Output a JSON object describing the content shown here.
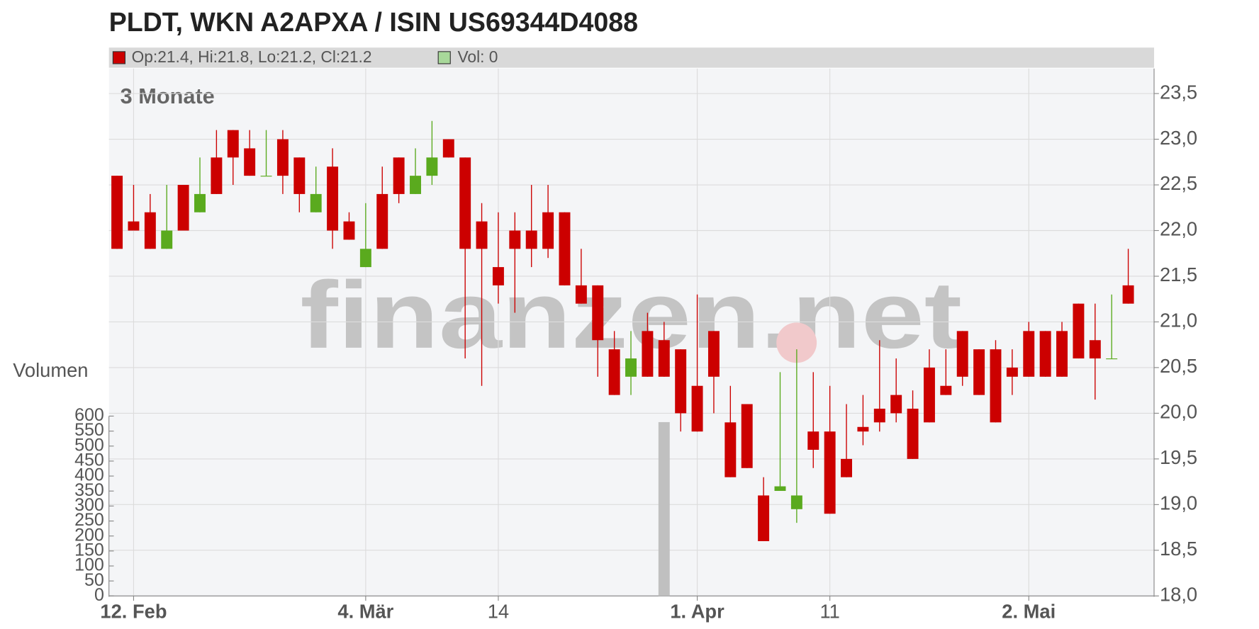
{
  "chart_data": {
    "type": "candlestick",
    "title": "PLDT, WKN A2APXA / ISIN US69344D4088",
    "legend": [
      "Op:21.4, Hi:21.8, Lo:21.2, Cl:21.2",
      "Vol: 0"
    ],
    "period_label": "3 Monate",
    "volume_label": "Volumen",
    "watermark": "finanzen.net",
    "up_color": "#5aaa1e",
    "down_color": "#cc0000",
    "volume_color": "#c0c0c0",
    "grid": true,
    "categories": [
      null,
      "12. Feb",
      null,
      null,
      null,
      null,
      null,
      null,
      null,
      null,
      null,
      null,
      null,
      null,
      null,
      "4. Mär",
      null,
      null,
      null,
      null,
      null,
      null,
      null,
      "14",
      null,
      null,
      null,
      null,
      null,
      null,
      null,
      null,
      null,
      null,
      null,
      "1. Apr",
      null,
      null,
      null,
      null,
      null,
      null,
      null,
      "11",
      null,
      null,
      null,
      null,
      null,
      null,
      null,
      null,
      null,
      null,
      null,
      "2. Mai",
      null,
      null,
      null,
      null,
      null,
      null
    ],
    "open": [
      22.6,
      22.1,
      22.2,
      21.8,
      22.5,
      22.2,
      22.8,
      23.1,
      22.9,
      22.6,
      23.0,
      22.8,
      22.2,
      22.7,
      22.1,
      21.6,
      22.4,
      22.8,
      22.4,
      22.6,
      23.0,
      22.8,
      22.1,
      21.6,
      22.0,
      22.0,
      22.2,
      22.2,
      21.4,
      21.4,
      20.7,
      20.4,
      20.9,
      20.8,
      20.7,
      20.3,
      20.9,
      19.9,
      20.1,
      19.1,
      19.15,
      18.95,
      19.8,
      19.8,
      19.5,
      19.85,
      20.05,
      20.2,
      20.05,
      20.5,
      20.3,
      20.9,
      20.7,
      20.7,
      20.5,
      20.9,
      20.9,
      20.9,
      21.2,
      20.8,
      20.6,
      21.4
    ],
    "high": [
      22.6,
      22.5,
      22.4,
      22.5,
      22.5,
      22.8,
      23.1,
      23.1,
      23.1,
      23.1,
      23.1,
      22.8,
      22.7,
      22.9,
      22.2,
      22.3,
      22.7,
      22.8,
      22.9,
      23.2,
      23.0,
      22.8,
      22.3,
      22.2,
      22.2,
      22.5,
      22.5,
      22.2,
      21.8,
      21.4,
      20.9,
      20.9,
      21.1,
      21.0,
      20.7,
      21.3,
      20.9,
      20.3,
      20.1,
      19.3,
      20.45,
      20.7,
      20.45,
      20.3,
      20.1,
      20.2,
      20.8,
      20.6,
      20.25,
      20.7,
      20.7,
      20.9,
      20.7,
      20.8,
      20.7,
      21.0,
      20.9,
      21.0,
      21.2,
      21.2,
      21.3,
      21.8
    ],
    "low": [
      21.8,
      22.0,
      21.8,
      21.8,
      22.0,
      22.2,
      22.4,
      22.5,
      22.6,
      22.6,
      22.4,
      22.2,
      22.2,
      21.8,
      21.9,
      21.6,
      21.8,
      22.3,
      22.4,
      22.5,
      22.8,
      20.6,
      20.3,
      21.2,
      21.1,
      21.6,
      21.7,
      21.4,
      21.2,
      20.4,
      20.2,
      20.2,
      20.4,
      20.4,
      19.8,
      19.8,
      20.0,
      19.3,
      19.4,
      18.6,
      19.15,
      18.8,
      19.4,
      18.9,
      19.3,
      19.65,
      19.8,
      19.9,
      19.5,
      19.9,
      20.2,
      20.3,
      20.2,
      19.9,
      20.2,
      20.4,
      20.4,
      20.4,
      20.6,
      20.15,
      20.6,
      21.2
    ],
    "close": [
      21.8,
      22.0,
      21.8,
      22.0,
      22.0,
      22.4,
      22.4,
      22.8,
      22.6,
      22.6,
      22.6,
      22.4,
      22.4,
      22.0,
      21.9,
      21.8,
      21.8,
      22.4,
      22.6,
      22.8,
      22.8,
      21.8,
      21.8,
      21.4,
      21.8,
      21.8,
      21.8,
      21.4,
      21.2,
      20.8,
      20.2,
      20.6,
      20.4,
      20.4,
      20.0,
      19.8,
      20.4,
      19.3,
      19.4,
      18.6,
      19.2,
      19.1,
      19.6,
      18.9,
      19.3,
      19.8,
      19.9,
      20.0,
      19.5,
      19.9,
      20.2,
      20.4,
      20.2,
      19.9,
      20.4,
      20.4,
      20.4,
      20.4,
      20.6,
      20.6,
      20.6,
      21.2
    ],
    "volume": [
      0,
      0,
      0,
      0,
      0,
      0,
      0,
      0,
      0,
      0,
      0,
      0,
      0,
      0,
      0,
      0,
      0,
      0,
      0,
      0,
      0,
      0,
      0,
      0,
      0,
      0,
      0,
      0,
      0,
      0,
      0,
      0,
      0,
      580,
      0,
      0,
      0,
      0,
      0,
      0,
      0,
      0,
      0,
      0,
      0,
      0,
      0,
      0,
      0,
      0,
      0,
      0,
      0,
      0,
      0,
      0,
      0,
      0,
      0,
      0,
      0,
      0
    ],
    "ylim": [
      18.0,
      23.5
    ],
    "yticks": [
      {
        "value": 18.0,
        "label": "18,0"
      },
      {
        "value": 18.5,
        "label": "18,5"
      },
      {
        "value": 19.0,
        "label": "19,0"
      },
      {
        "value": 19.5,
        "label": "19,5"
      },
      {
        "value": 20.0,
        "label": "20,0"
      },
      {
        "value": 20.5,
        "label": "20,5"
      },
      {
        "value": 21.0,
        "label": "21,0"
      },
      {
        "value": 21.5,
        "label": "21,5"
      },
      {
        "value": 22.0,
        "label": "22,0"
      },
      {
        "value": 22.5,
        "label": "22,5"
      },
      {
        "value": 23.0,
        "label": "23,0"
      },
      {
        "value": 23.5,
        "label": "23,5"
      }
    ],
    "y2lim": [
      0,
      600
    ],
    "y2ticks": [
      0,
      50,
      100,
      150,
      200,
      250,
      300,
      350,
      400,
      450,
      500,
      550,
      600
    ]
  }
}
